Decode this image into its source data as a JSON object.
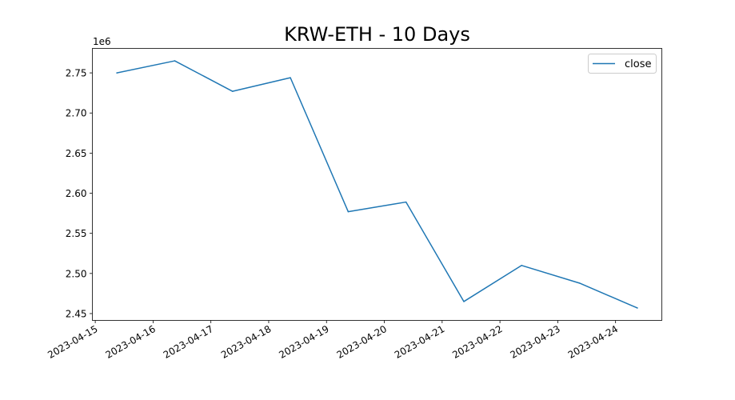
{
  "chart_data": {
    "type": "line",
    "title": "KRW-ETH - 10 Days",
    "xlabel": "",
    "ylabel": "",
    "offset_label": "1e6",
    "x": [
      "2023-04-15 09:00",
      "2023-04-16 09:00",
      "2023-04-17 09:00",
      "2023-04-18 09:00",
      "2023-04-19 09:00",
      "2023-04-20 09:00",
      "2023-04-21 09:00",
      "2023-04-22 09:00",
      "2023-04-23 09:00",
      "2023-04-24 09:00"
    ],
    "series": [
      {
        "name": "close",
        "color": "#1f77b4",
        "values": [
          2.75,
          2.765,
          2.727,
          2.744,
          2.577,
          2.589,
          2.465,
          2.51,
          2.488,
          2.457
        ]
      }
    ],
    "x_ticks": [
      "2023-04-15",
      "2023-04-16",
      "2023-04-17",
      "2023-04-18",
      "2023-04-19",
      "2023-04-20",
      "2023-04-21",
      "2023-04-22",
      "2023-04-23",
      "2023-04-24"
    ],
    "y_ticks": [
      "2.45",
      "2.50",
      "2.55",
      "2.60",
      "2.65",
      "2.70",
      "2.75"
    ],
    "ylim": [
      2.4415,
      2.7805
    ],
    "xlim": [
      "2023-04-14 22:48",
      "2023-04-24 19:12"
    ],
    "grid": false,
    "legend_position": "top-right"
  }
}
